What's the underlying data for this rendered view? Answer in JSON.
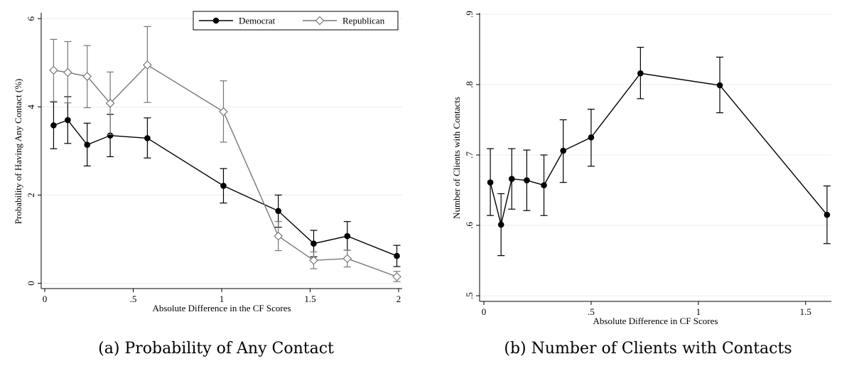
{
  "figure": {
    "caption_a": "(a) Probability of Any Contact",
    "caption_b": "(b) Number of Clients with Contacts"
  },
  "chart_data": [
    {
      "type": "line",
      "xlabel": "Absolute Difference in the CF Scores",
      "ylabel": "Probability of Having Any Contact (%)",
      "xlim": [
        -0.02,
        2.02
      ],
      "ylim": [
        -0.12,
        6.1
      ],
      "xticks": [
        0,
        0.5,
        1,
        1.5,
        2
      ],
      "xtick_labels": [
        "0",
        ".5",
        "1",
        "1.5",
        "2"
      ],
      "yticks": [
        0,
        2,
        4,
        6
      ],
      "ytick_labels": [
        "0",
        "2",
        "4",
        "6"
      ],
      "grid": true,
      "legend": "top-right",
      "series": [
        {
          "name": "Democrat",
          "marker": "circle-filled",
          "color": "#000000",
          "x": [
            0.05,
            0.13,
            0.24,
            0.37,
            0.58,
            1.01,
            1.32,
            1.52,
            1.71,
            1.99
          ],
          "y": [
            3.58,
            3.7,
            3.14,
            3.35,
            3.29,
            2.21,
            1.64,
            0.9,
            1.07,
            0.62
          ],
          "lo": [
            3.05,
            3.17,
            2.66,
            2.87,
            2.84,
            1.82,
            1.27,
            0.6,
            0.75,
            0.38
          ],
          "hi": [
            4.11,
            4.23,
            3.63,
            3.83,
            3.75,
            2.6,
            2.0,
            1.2,
            1.4,
            0.86
          ]
        },
        {
          "name": "Republican",
          "marker": "diamond-hollow",
          "color": "#777777",
          "x": [
            0.05,
            0.13,
            0.24,
            0.37,
            0.58,
            1.01,
            1.32,
            1.52,
            1.71,
            1.99
          ],
          "y": [
            4.83,
            4.78,
            4.69,
            4.08,
            4.95,
            3.89,
            1.07,
            0.52,
            0.56,
            0.15
          ],
          "lo": [
            4.12,
            4.09,
            3.98,
            3.37,
            4.1,
            3.2,
            0.74,
            0.33,
            0.37,
            0.04
          ],
          "hi": [
            5.53,
            5.48,
            5.39,
            4.79,
            5.82,
            4.59,
            1.4,
            0.71,
            0.75,
            0.27
          ]
        }
      ]
    },
    {
      "type": "line",
      "xlabel": "Absolute Difference in CF Scores",
      "ylabel": "Number of Clients with Contacts",
      "xlim": [
        -0.02,
        1.62
      ],
      "ylim": [
        0.492,
        0.9
      ],
      "xticks": [
        0,
        0.5,
        1,
        1.5
      ],
      "xtick_labels": [
        "0",
        ".5",
        "1",
        "1.5"
      ],
      "yticks": [
        0.5,
        0.6,
        0.7,
        0.8,
        0.9
      ],
      "ytick_labels": [
        ".5",
        ".6",
        ".7",
        ".8",
        ".9"
      ],
      "grid": true,
      "series": [
        {
          "marker": "circle-filled",
          "color": "#000000",
          "x": [
            0.03,
            0.08,
            0.13,
            0.2,
            0.28,
            0.37,
            0.5,
            0.73,
            1.1,
            1.6
          ],
          "y": [
            0.661,
            0.601,
            0.666,
            0.664,
            0.657,
            0.706,
            0.725,
            0.816,
            0.799,
            0.615
          ],
          "lo": [
            0.614,
            0.557,
            0.623,
            0.621,
            0.614,
            0.661,
            0.684,
            0.78,
            0.76,
            0.574
          ],
          "hi": [
            0.709,
            0.645,
            0.709,
            0.707,
            0.7,
            0.75,
            0.765,
            0.853,
            0.839,
            0.656
          ]
        }
      ]
    }
  ]
}
